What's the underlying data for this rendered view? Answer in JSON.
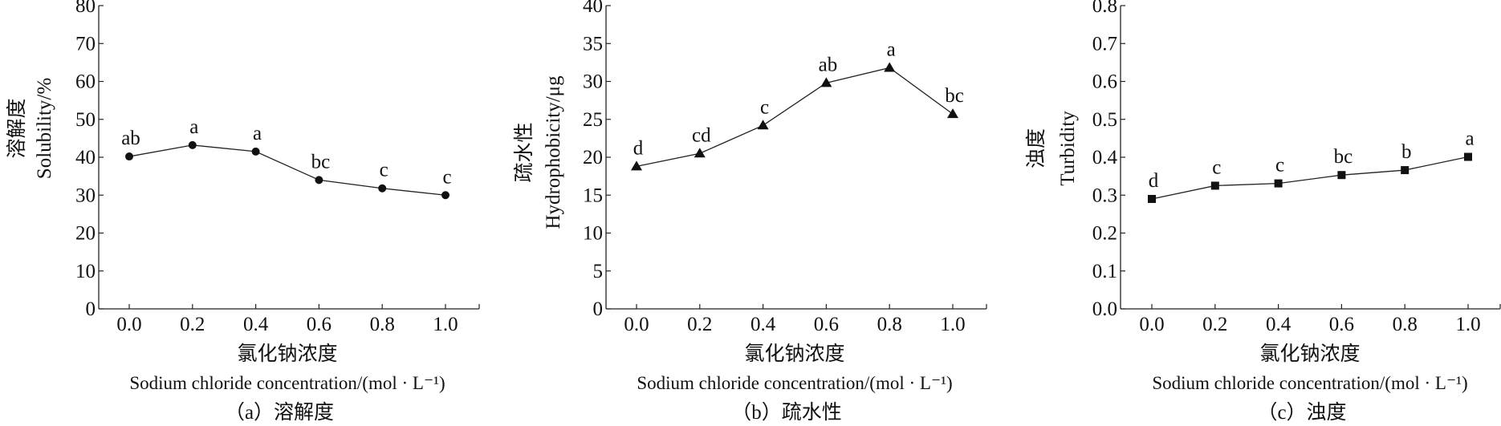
{
  "chart_data": [
    {
      "type": "line",
      "id": "a",
      "x": [
        0.0,
        0.2,
        0.4,
        0.6,
        0.8,
        1.0
      ],
      "x_tick_labels": [
        "0.0",
        "0.2",
        "0.4",
        "0.6",
        "0.8",
        "1.0"
      ],
      "values": [
        40.2,
        43.2,
        41.5,
        34.0,
        31.8,
        30.0
      ],
      "significance_labels": [
        "ab",
        "a",
        "a",
        "bc",
        "c",
        "c"
      ],
      "marker": "circle",
      "ylim": [
        0,
        80
      ],
      "y_ticks": [
        0,
        10,
        20,
        30,
        40,
        50,
        60,
        70,
        80
      ],
      "y_tick_labels": [
        "0",
        "10",
        "20",
        "30",
        "40",
        "50",
        "60",
        "70",
        "80"
      ],
      "ylabel_cn": "溶解度",
      "ylabel_en": "Solubility/%",
      "xlabel_cn": "氯化钠浓度",
      "xlabel_en": "Sodium chloride concentration/(mol · L⁻¹)",
      "caption": "（a）溶解度"
    },
    {
      "type": "line",
      "id": "b",
      "x": [
        0.0,
        0.2,
        0.4,
        0.6,
        0.8,
        1.0
      ],
      "x_tick_labels": [
        "0.0",
        "0.2",
        "0.4",
        "0.6",
        "0.8",
        "1.0"
      ],
      "values": [
        18.8,
        20.5,
        24.2,
        29.8,
        31.8,
        25.7
      ],
      "significance_labels": [
        "d",
        "cd",
        "c",
        "ab",
        "a",
        "bc"
      ],
      "marker": "triangle",
      "ylim": [
        0,
        40
      ],
      "y_ticks": [
        0,
        5,
        10,
        15,
        20,
        25,
        30,
        35,
        40
      ],
      "y_tick_labels": [
        "0",
        "5",
        "10",
        "15",
        "20",
        "25",
        "30",
        "35",
        "40"
      ],
      "ylabel_cn": "疏水性",
      "ylabel_en": "Hydrophobicity/μg",
      "xlabel_cn": "氯化钠浓度",
      "xlabel_en": "Sodium chloride concentration/(mol · L⁻¹)",
      "caption": "（b）疏水性"
    },
    {
      "type": "line",
      "id": "c",
      "x": [
        0.0,
        0.2,
        0.4,
        0.6,
        0.8,
        1.0
      ],
      "x_tick_labels": [
        "0.0",
        "0.2",
        "0.4",
        "0.6",
        "0.8",
        "1.0"
      ],
      "values": [
        0.29,
        0.325,
        0.331,
        0.353,
        0.366,
        0.401
      ],
      "significance_labels": [
        "d",
        "c",
        "c",
        "bc",
        "b",
        "a"
      ],
      "marker": "square",
      "ylim": [
        0,
        0.8
      ],
      "y_ticks": [
        0,
        0.1,
        0.2,
        0.3,
        0.4,
        0.5,
        0.6,
        0.7,
        0.8
      ],
      "y_tick_labels": [
        "0.0",
        "0.1",
        "0.2",
        "0.3",
        "0.4",
        "0.5",
        "0.6",
        "0.7",
        "0.8"
      ],
      "ylabel_cn": "浊度",
      "ylabel_en": "Turbidity",
      "xlabel_cn": "氯化钠浓度",
      "xlabel_en": "Sodium chloride concentration/(mol · L⁻¹)",
      "caption": "（c）浊度"
    }
  ]
}
